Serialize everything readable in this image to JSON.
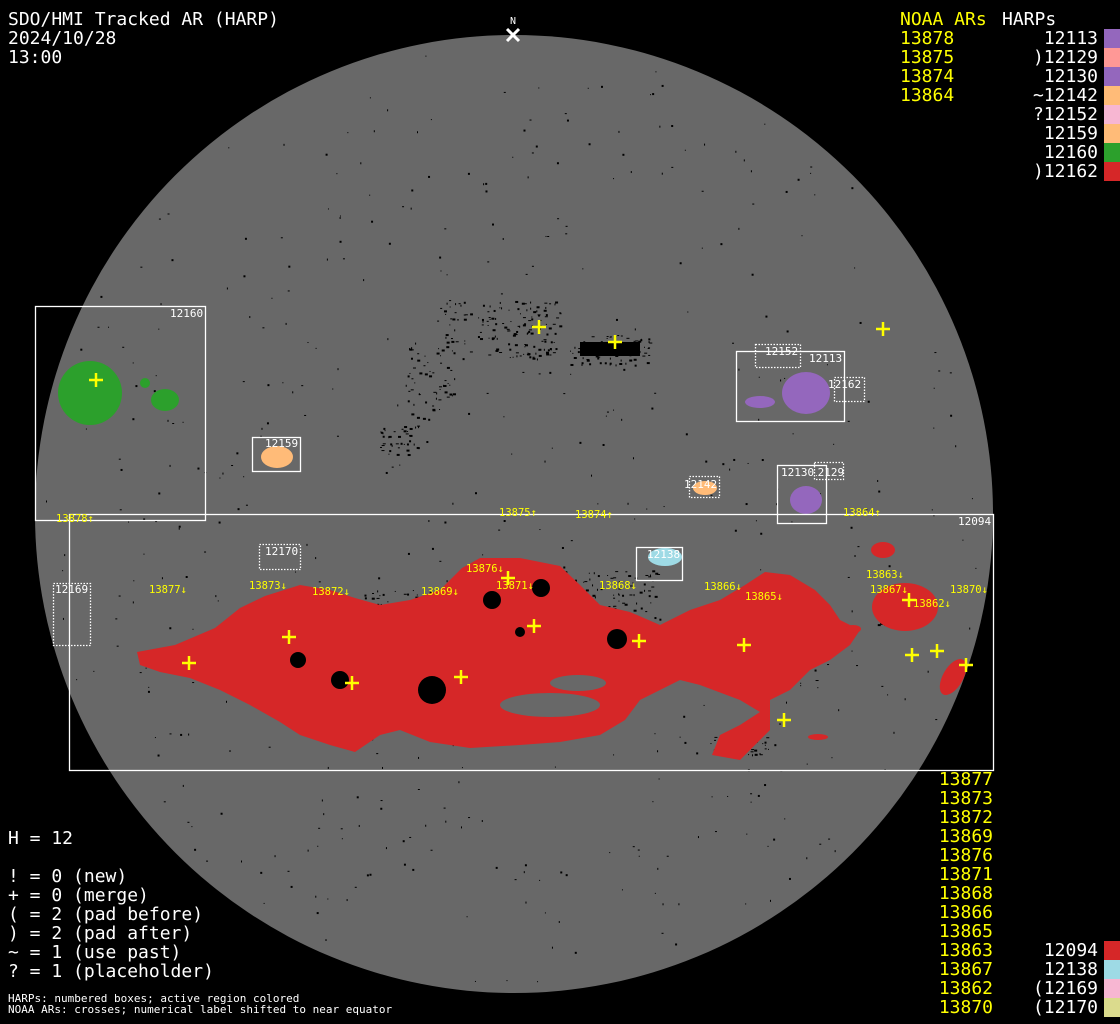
{
  "header": {
    "title": "SDO/HMI Tracked AR (HARP)",
    "date": "2024/10/28",
    "time": "13:00",
    "north_label": "N"
  },
  "legend_top": {
    "noaa_heading": "NOAA ARs",
    "harp_heading": "HARPs",
    "noaa": [
      "13878",
      "13875",
      "13874",
      "13864"
    ],
    "harps": [
      {
        "label": "12113",
        "color": "#9467bd"
      },
      {
        "label": ")12129",
        "color": "#ff9896"
      },
      {
        "label": "12130",
        "color": "#9467bd"
      },
      {
        "label": "~12142",
        "color": "#ffbb78"
      },
      {
        "label": "?12152",
        "color": "#f7b6d2"
      },
      {
        "label": "12159",
        "color": "#ffbb78"
      },
      {
        "label": "12160",
        "color": "#2ca02c"
      },
      {
        "label": ")12162",
        "color": "#d62728"
      }
    ]
  },
  "legend_bottom": {
    "noaa": [
      "13877",
      "13873",
      "13872",
      "13869",
      "13876",
      "13871",
      "13868",
      "13866",
      "13865",
      "13863",
      "13867",
      "13862",
      "13870"
    ],
    "harps": [
      {
        "label": "12094",
        "color": "#d62728"
      },
      {
        "label": "12138",
        "color": "#9edae5"
      },
      {
        "label": "(12169",
        "color": "#f7b6d2"
      },
      {
        "label": "(12170",
        "color": "#dbdb8d"
      }
    ]
  },
  "stats": {
    "h": "H = 12",
    "lines": [
      "! = 0 (new)",
      "+ = 0 (merge)",
      "( = 2 (pad before)",
      ") = 2 (pad after)",
      "~ = 1 (use past)",
      "? = 1 (placeholder)"
    ]
  },
  "footnote": [
    "HARPs: numbered boxes; active region colored",
    "NOAA ARs: crosses; numerical label shifted to near equator"
  ],
  "disk": {
    "harp_boxes": [
      {
        "label": "12160",
        "style": "solid"
      },
      {
        "label": "12159",
        "style": "solid"
      },
      {
        "label": "12152",
        "style": "dotted"
      },
      {
        "label": "12113",
        "style": "solid"
      },
      {
        "label": "12162",
        "style": "dotted"
      },
      {
        "label": "12142",
        "style": "dotted"
      },
      {
        "label": "12130",
        "style": "solid"
      },
      {
        "label": "12129",
        "style": "dotted"
      },
      {
        "label": "12094",
        "style": "solid"
      },
      {
        "label": "12170",
        "style": "dotted"
      },
      {
        "label": "12169",
        "style": "dotted"
      },
      {
        "label": "12138",
        "style": "solid"
      }
    ],
    "noaa_labels": [
      "13878↑",
      "13875↑",
      "13874↑",
      "13864↑",
      "13877↓",
      "13873↓",
      "13872↓",
      "13869↓",
      "13876↓",
      "13871↓",
      "13868↓",
      "13866↓",
      "13865↓",
      "13863↓",
      "13867↓",
      "13862↓",
      "13870↓"
    ],
    "colors": {
      "disk": "#686868",
      "cross": "#ffff00",
      "box": "#ffffff"
    }
  }
}
